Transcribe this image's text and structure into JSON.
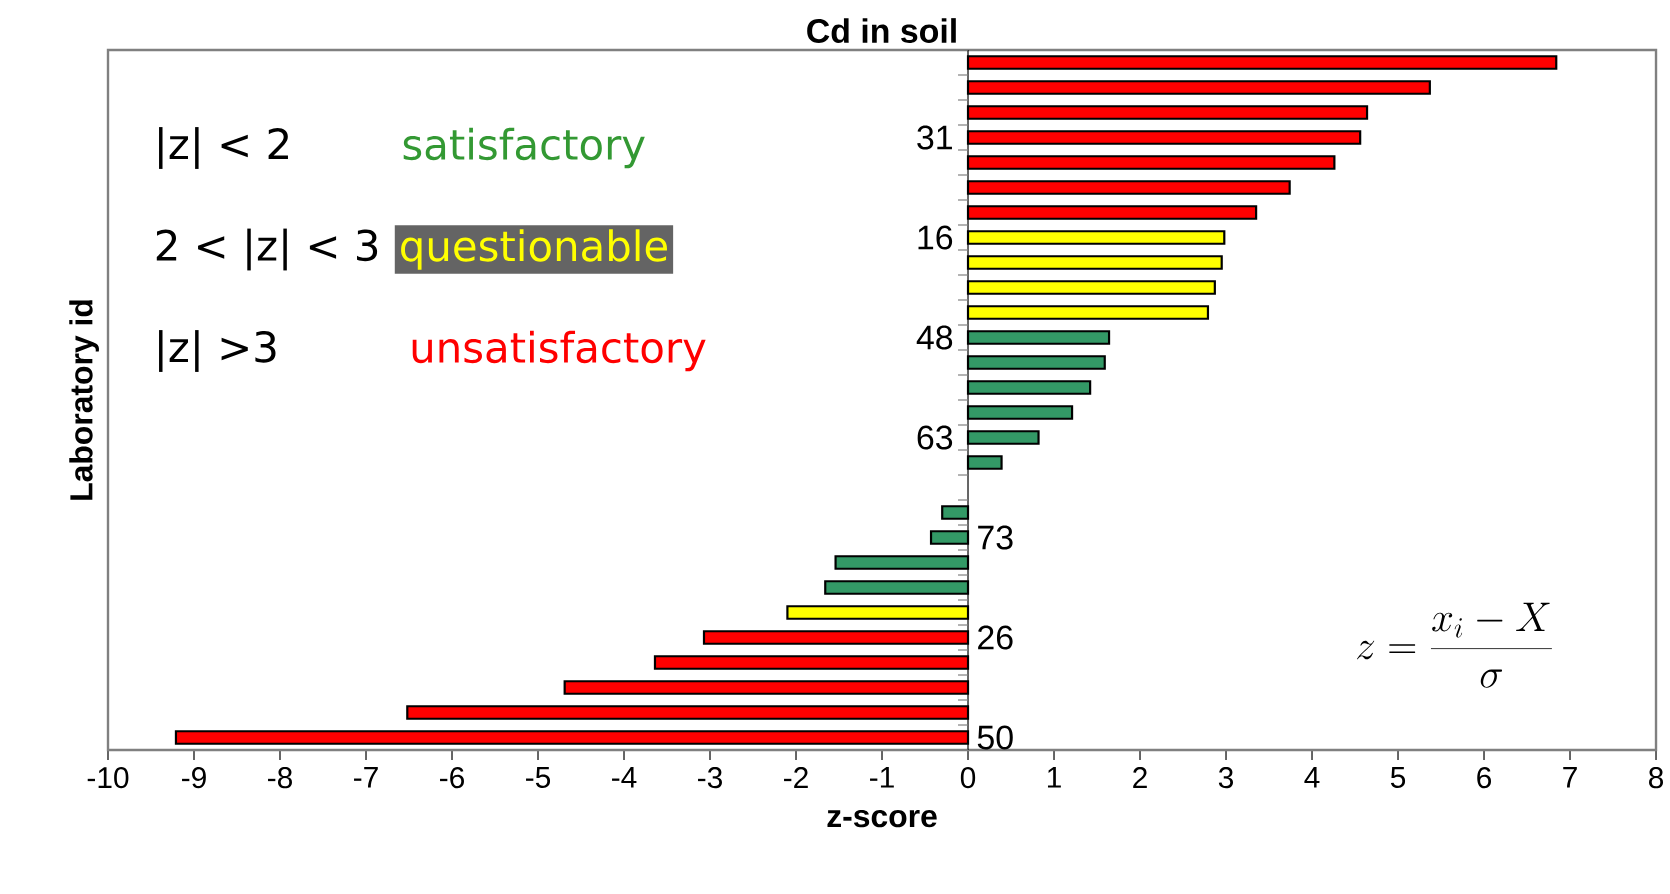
{
  "chart_data": {
    "type": "bar",
    "orientation": "horizontal",
    "title": "Cd in soil",
    "xlabel": "z-score",
    "ylabel": "Laboratory id",
    "categories": [
      null,
      null,
      null,
      "31",
      null,
      null,
      null,
      "16",
      null,
      null,
      null,
      "48",
      null,
      null,
      null,
      "63",
      null,
      null,
      null,
      "73",
      null,
      null,
      null,
      "26",
      null,
      null,
      null,
      "50"
    ],
    "values": [
      6.84,
      5.37,
      4.64,
      4.56,
      4.26,
      3.74,
      3.35,
      2.98,
      2.95,
      2.87,
      2.79,
      1.64,
      1.59,
      1.42,
      1.21,
      0.82,
      0.39,
      null,
      -0.3,
      -0.43,
      -1.54,
      -1.66,
      -2.1,
      -3.07,
      -3.64,
      -4.69,
      -6.52,
      -9.21
    ],
    "colors": [
      "#ff0000",
      "#ff0000",
      "#ff0000",
      "#ff0000",
      "#ff0000",
      "#ff0000",
      "#ff0000",
      "#ffff00",
      "#ffff00",
      "#ffff00",
      "#ffff00",
      "#339966",
      "#339966",
      "#339966",
      "#339966",
      "#339966",
      "#339966",
      "#339966",
      "#339966",
      "#339966",
      "#339966",
      "#339966",
      "#ffff00",
      "#ff0000",
      "#ff0000",
      "#ff0000",
      "#ff0000",
      "#ff0000"
    ],
    "xlim": [
      -10,
      8
    ],
    "xticks": [
      -10,
      -9,
      -8,
      -7,
      -6,
      -5,
      -4,
      -3,
      -2,
      -1,
      0,
      1,
      2,
      3,
      4,
      5,
      6,
      7,
      8
    ],
    "grid": false,
    "annotations": [
      "|z| < 2",
      "satisfactory",
      "2 < |z| < 3",
      "questionable",
      "|z| >3",
      "unsatisfactory",
      "z = \\frac{x_i - X}{\\sigma}"
    ]
  }
}
